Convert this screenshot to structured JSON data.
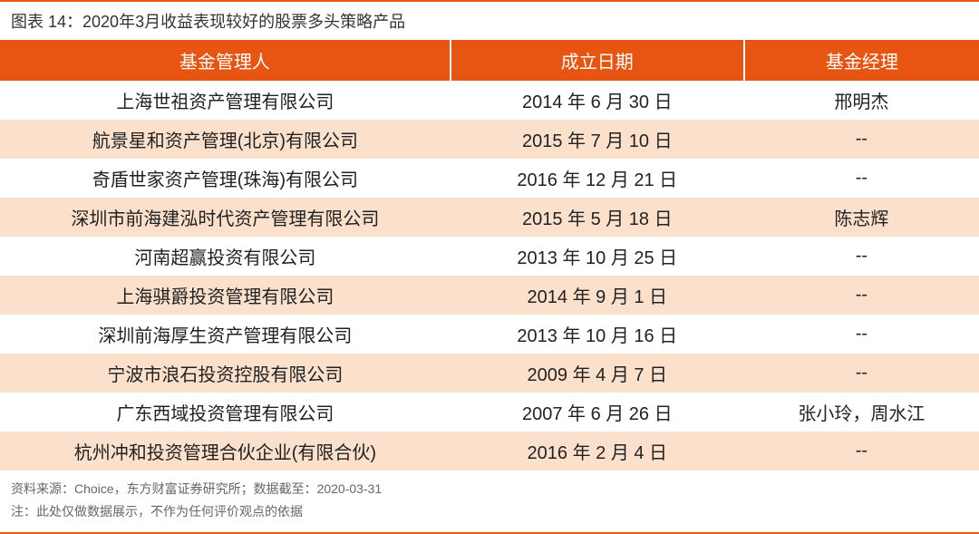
{
  "title": "图表 14：2020年3月收益表现较好的股票多头策略产品",
  "colors": {
    "accent": "#e85412",
    "rowTint": "#fbe0cc",
    "rowWhite": "#ffffff",
    "headerText": "#ffffff",
    "bodyText": "#222222",
    "footText": "#666666"
  },
  "table": {
    "type": "table",
    "columns": [
      "基金管理人",
      "成立日期",
      "基金经理"
    ],
    "column_widths_pct": [
      46,
      30,
      24
    ],
    "header_bg": "#e85412",
    "header_fontsize": 20,
    "body_fontsize": 20,
    "row_alt_bg": "#fbe0cc",
    "rows": [
      [
        "上海世祖资产管理有限公司",
        "2014 年 6 月 30 日",
        "邢明杰"
      ],
      [
        "航景星和资产管理(北京)有限公司",
        "2015 年 7 月 10 日",
        "--"
      ],
      [
        "奇盾世家资产管理(珠海)有限公司",
        "2016 年 12 月 21 日",
        "--"
      ],
      [
        "深圳市前海建泓时代资产管理有限公司",
        "2015 年 5 月 18 日",
        "陈志辉"
      ],
      [
        "河南超赢投资有限公司",
        "2013 年 10 月 25 日",
        "--"
      ],
      [
        "上海骐爵投资管理有限公司",
        "2014 年 9 月 1 日",
        "--"
      ],
      [
        "深圳前海厚生资产管理有限公司",
        "2013 年 10 月 16 日",
        "--"
      ],
      [
        "宁波市浪石投资控股有限公司",
        "2009 年 4 月 7 日",
        "--"
      ],
      [
        "广东西域投资管理有限公司",
        "2007 年 6 月 26 日",
        "张小玲，周水江"
      ],
      [
        "杭州冲和投资管理合伙企业(有限合伙)",
        "2016 年 2 月 4 日",
        "--"
      ]
    ]
  },
  "footnotes": [
    "资料来源：Choice，东方财富证券研究所；数据截至：2020-03-31",
    "注：此处仅做数据展示，不作为任何评价观点的依据"
  ]
}
